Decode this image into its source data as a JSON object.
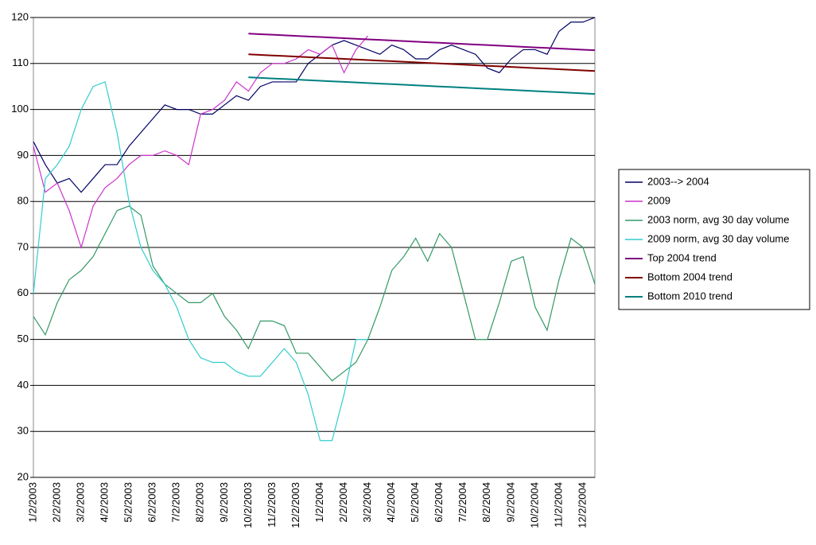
{
  "chart_data": {
    "type": "line",
    "categories": [
      "1/2/2003",
      null,
      "2/2/2003",
      null,
      "3/2/2003",
      null,
      "4/2/2003",
      null,
      "5/2/2003",
      null,
      "6/2/2003",
      null,
      "7/2/2003",
      null,
      "8/2/2003",
      null,
      "9/2/2003",
      null,
      "10/2/2003",
      null,
      "11/2/2003",
      null,
      "12/2/2003",
      null,
      "1/2/2004",
      null,
      "2/2/2004",
      null,
      "3/2/2004",
      null,
      "4/2/2004",
      null,
      "5/2/2004",
      null,
      "6/2/2004",
      null,
      "7/2/2004",
      null,
      "8/2/2004",
      null,
      "9/2/2004",
      null,
      "10/2/2004",
      null,
      "11/2/2004",
      null,
      "12/2/2004",
      null
    ],
    "series": [
      {
        "name": "2003--> 2004",
        "color": "#000066",
        "values": [
          93,
          88,
          84,
          85,
          82,
          85,
          88,
          88,
          92,
          95,
          98,
          101,
          100,
          100,
          99,
          99,
          101,
          103,
          102,
          105,
          106,
          106,
          106,
          110,
          112,
          114,
          115,
          114,
          113,
          112,
          114,
          113,
          111,
          111,
          113,
          114,
          113,
          112,
          109,
          108,
          111,
          113,
          113,
          112,
          117,
          119,
          119,
          120
        ]
      },
      {
        "name": "2009",
        "color": "#cc33cc",
        "values": [
          92,
          82,
          84,
          78,
          70,
          79,
          83,
          85,
          88,
          90,
          90,
          91,
          90,
          88,
          99,
          100,
          102,
          106,
          104,
          108,
          110,
          110,
          111,
          113,
          112,
          114,
          108,
          113,
          116,
          null,
          null,
          null,
          null,
          null,
          null,
          null,
          null,
          null,
          null,
          null,
          null,
          null,
          null,
          null,
          null,
          null,
          null,
          null
        ]
      },
      {
        "name": "2003 norm, avg 30 day volume",
        "color": "#339966",
        "values": [
          55,
          51,
          58,
          63,
          65,
          68,
          73,
          78,
          79,
          77,
          66,
          62,
          60,
          58,
          58,
          60,
          55,
          52,
          48,
          54,
          54,
          53,
          47,
          47,
          44,
          41,
          43,
          45,
          50,
          57,
          65,
          68,
          72,
          67,
          73,
          70,
          60,
          50,
          50,
          58,
          67,
          68,
          57,
          52,
          63,
          72,
          70,
          62
        ]
      },
      {
        "name": "2009 norm, avg 30 day volume",
        "color": "#33cccc",
        "values": [
          60,
          85,
          88,
          92,
          100,
          105,
          106,
          95,
          80,
          70,
          65,
          62,
          57,
          50,
          46,
          45,
          45,
          43,
          42,
          42,
          45,
          48,
          45,
          38,
          28,
          28,
          38,
          50,
          50,
          null,
          null,
          null,
          null,
          null,
          null,
          null,
          null,
          null,
          null,
          null,
          null,
          null,
          null,
          null,
          null,
          null,
          null,
          null
        ]
      },
      {
        "name": "Top 2004 trend",
        "color": "#800080",
        "values": [
          null,
          null,
          null,
          null,
          null,
          null,
          null,
          null,
          null,
          null,
          null,
          null,
          null,
          null,
          null,
          null,
          null,
          null,
          116.5,
          116.375,
          116.25,
          116.125,
          116,
          115.875,
          115.75,
          115.625,
          115.5,
          115.375,
          115.25,
          115.125,
          115,
          114.875,
          114.75,
          114.625,
          114.5,
          114.375,
          114.25,
          114.125,
          114,
          113.875,
          113.75,
          113.625,
          113.5,
          113.375,
          113.25,
          113.125,
          113,
          112.875
        ]
      },
      {
        "name": "Bottom 2004 trend",
        "color": "#800000",
        "values": [
          null,
          null,
          null,
          null,
          null,
          null,
          null,
          null,
          null,
          null,
          null,
          null,
          null,
          null,
          null,
          null,
          null,
          null,
          112,
          111.875,
          111.75,
          111.625,
          111.5,
          111.375,
          111.25,
          111.125,
          111,
          110.875,
          110.75,
          110.625,
          110.5,
          110.375,
          110.25,
          110.125,
          110,
          109.875,
          109.75,
          109.625,
          109.5,
          109.375,
          109.25,
          109.125,
          109,
          108.875,
          108.75,
          108.625,
          108.5,
          108.375
        ]
      },
      {
        "name": "Bottom 2010 trend",
        "color": "#008080",
        "values": [
          null,
          null,
          null,
          null,
          null,
          null,
          null,
          null,
          null,
          null,
          null,
          null,
          null,
          null,
          null,
          null,
          null,
          null,
          107,
          106.875,
          106.75,
          106.625,
          106.5,
          106.375,
          106.25,
          106.125,
          106,
          105.875,
          105.75,
          105.625,
          105.5,
          105.375,
          105.25,
          105.125,
          105,
          104.875,
          104.75,
          104.625,
          104.5,
          104.375,
          104.25,
          104.125,
          104,
          103.875,
          103.75,
          103.625,
          103.5,
          103.375
        ]
      }
    ],
    "ylim": [
      20,
      120
    ],
    "yticks": [
      20,
      30,
      40,
      50,
      60,
      70,
      80,
      90,
      100,
      110,
      120
    ],
    "grid": true,
    "legend": "right"
  }
}
